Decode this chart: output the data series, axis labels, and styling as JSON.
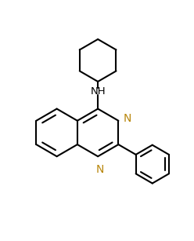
{
  "bg_color": "#ffffff",
  "line_color": "#000000",
  "N_color": "#b8860b",
  "bond_lw": 1.5,
  "figsize": [
    2.48,
    3.07
  ],
  "dpi": 100,
  "xlim": [
    0,
    1
  ],
  "ylim": [
    0,
    1
  ]
}
